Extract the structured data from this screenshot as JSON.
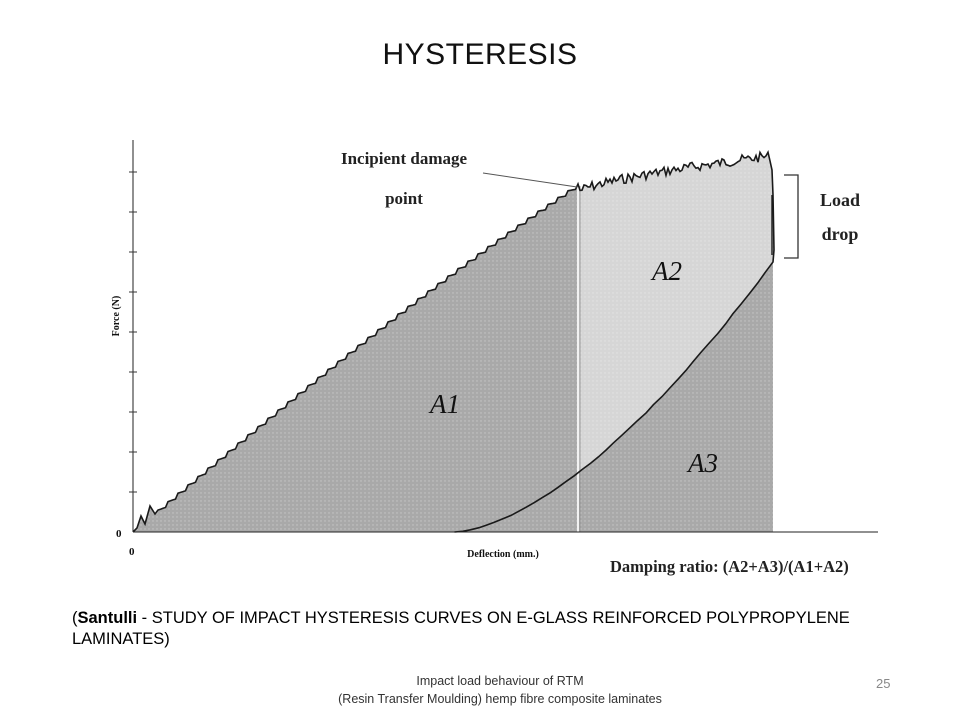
{
  "slide": {
    "title": "HYSTERESIS",
    "page_number": "25"
  },
  "diagram": {
    "y_axis_label": "Force (N)",
    "x_axis_label": "Deflection (mm.)",
    "y_origin_label": "0",
    "x_origin_label": "0",
    "annotation_line1": "Incipient damage",
    "annotation_line2": "point",
    "load_drop_line1": "Load",
    "load_drop_line2": "drop",
    "region_a1": "A1",
    "region_a2": "A2",
    "region_a3": "A3",
    "damping_ratio": "Damping ratio: (A2+A3)/(A1+A2)",
    "colors": {
      "dark_fill": "#a9a9a9",
      "light_fill": "#d6d6d6",
      "curve": "#1a1a1a"
    }
  },
  "caption": {
    "open_paren": "(",
    "author": "Santulli",
    "rest": " - STUDY OF IMPACT HYSTERESIS CURVES ON E-GLASS REINFORCED POLYPROPYLENE LAMINATES)"
  },
  "footer": {
    "line1": "Impact load behaviour of RTM",
    "line2": "(Resin Transfer Moulding) hemp fibre composite laminates"
  }
}
